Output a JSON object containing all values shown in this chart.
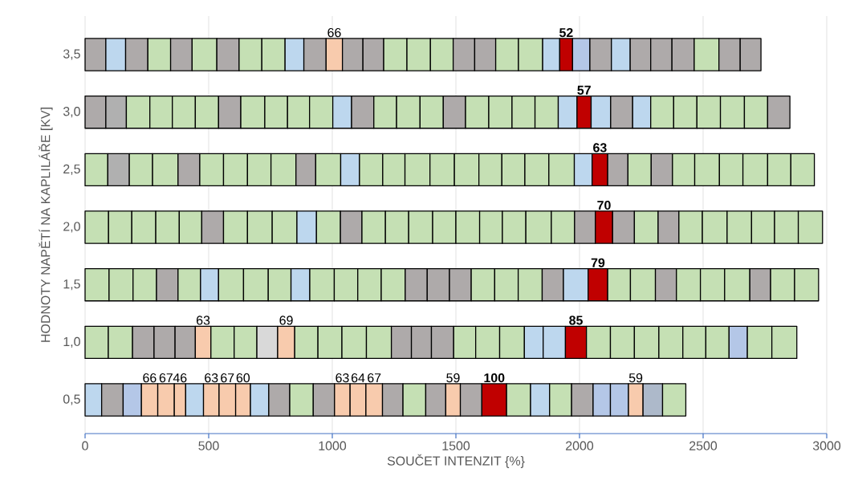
{
  "chart_data": {
    "type": "bar",
    "orientation": "horizontal",
    "stacked": true,
    "xlabel": "SOUČET INTENZIT {%}",
    "ylabel": "HODNOTY NAPĚTÍ NA KAPLILÁŘE [KV]",
    "categories": [
      "3,5",
      "3,0",
      "2,5",
      "2,0",
      "1,5",
      "1,0",
      "0,5"
    ],
    "xlim": [
      0,
      3000
    ],
    "xticks": [
      0,
      500,
      1000,
      1500,
      2000,
      2500,
      3000
    ],
    "grid": "x",
    "series": [
      {
        "values": [
          84,
          84,
          92,
          95,
          97,
          94,
          67
        ],
        "colors": [
          "#aeaaaa",
          "#aeaaaa",
          "#c5e0b4",
          "#c5e0b4",
          "#c5e0b4",
          "#c5e0b4",
          "#bdd7ee"
        ]
      },
      {
        "values": [
          80,
          83,
          87,
          94,
          97,
          98,
          87
        ],
        "colors": [
          "#bdd7ee",
          "#b0b0b0",
          "#b0b0b0",
          "#c5e0b4",
          "#c5e0b4",
          "#c5e0b4",
          "#aeaaaa"
        ]
      },
      {
        "values": [
          90,
          95,
          94,
          97,
          95,
          87,
          74
        ],
        "colors": [
          "#aeaaaa",
          "#c5e0b4",
          "#c5e0b4",
          "#c5e0b4",
          "#c5e0b4",
          "#aeaaaa",
          "#b4c7e7"
        ]
      },
      {
        "values": [
          92,
          91,
          103,
          95,
          87,
          85,
          66
        ],
        "colors": [
          "#c5e0b4",
          "#c5e0b4",
          "#c5e0b4",
          "#c5e0b4",
          "#aeaaaa",
          "#aeaaaa",
          "#f8cbad"
        ],
        "value_labels": [
          null,
          null,
          null,
          null,
          null,
          null,
          "66"
        ]
      },
      {
        "values": [
          87,
          93,
          88,
          91,
          91,
          82,
          67
        ],
        "colors": [
          "#aeaaaa",
          "#c5e0b4",
          "#aeaaaa",
          "#c5e0b4",
          "#c5e0b4",
          "#aeaaaa",
          "#f8cbad"
        ],
        "value_labels": [
          null,
          null,
          null,
          null,
          null,
          null,
          "67"
        ]
      },
      {
        "values": [
          100,
          94,
          96,
          88,
          73,
          63,
          46
        ],
        "colors": [
          "#c5e0b4",
          "#c5e0b4",
          "#c5e0b4",
          "#aeaaaa",
          "#bdd7ee",
          "#f8cbad",
          "#f8cbad"
        ],
        "value_labels": [
          null,
          null,
          null,
          null,
          null,
          "63",
          "46"
        ]
      },
      {
        "values": [
          90,
          90,
          97,
          97,
          101,
          94,
          72
        ],
        "colors": [
          "#aeaaaa",
          "#aeaaaa",
          "#c5e0b4",
          "#c5e0b4",
          "#c5e0b4",
          "#c5e0b4",
          "#bdd7ee"
        ]
      },
      {
        "values": [
          92,
          97,
          95,
          100,
          100,
          92,
          63
        ],
        "colors": [
          "#c5e0b4",
          "#c5e0b4",
          "#c5e0b4",
          "#c5e0b4",
          "#c5e0b4",
          "#c5e0b4",
          "#f8cbad"
        ],
        "value_labels": [
          null,
          null,
          null,
          null,
          null,
          null,
          "63"
        ]
      },
      {
        "values": [
          94,
          92,
          101,
          100,
          92,
          84,
          67
        ],
        "colors": [
          "#c5e0b4",
          "#c5e0b4",
          "#c5e0b4",
          "#c5e0b4",
          "#c5e0b4",
          "#d9d9d9",
          "#f8cbad"
        ],
        "value_labels": [
          null,
          null,
          null,
          null,
          null,
          null,
          "67"
        ]
      },
      {
        "values": [
          76,
          89,
          80,
          79,
          76,
          69,
          60
        ],
        "colors": [
          "#bdd7ee",
          "#c5e0b4",
          "#aeaaaa",
          "#bdd7ee",
          "#bdd7ee",
          "#f8cbad",
          "#f8cbad"
        ],
        "value_labels": [
          null,
          null,
          null,
          null,
          null,
          "69",
          "60"
        ]
      },
      {
        "values": [
          90,
          94,
          101,
          97,
          99,
          94,
          74
        ],
        "colors": [
          "#aeaaaa",
          "#c5e0b4",
          "#c5e0b4",
          "#c5e0b4",
          "#c5e0b4",
          "#c5e0b4",
          "#bdd7ee"
        ]
      },
      {
        "values": [
          66,
          76,
          76,
          87,
          95,
          97,
          85
        ],
        "colors": [
          "#f8cbad",
          "#bdd7ee",
          "#bdd7ee",
          "#aeaaaa",
          "#c5e0b4",
          "#c5e0b4",
          "#aeaaaa"
        ],
        "value_labels": [
          "66",
          null,
          null,
          null,
          null,
          null,
          null
        ]
      },
      {
        "values": [
          83,
          90,
          94,
          95,
          95,
          99,
          95
        ],
        "colors": [
          "#aeaaaa",
          "#aeaaaa",
          "#c5e0b4",
          "#c5e0b4",
          "#c5e0b4",
          "#c5e0b4",
          "#c5e0b4"
        ]
      },
      {
        "values": [
          84,
          92,
          90,
          94,
          97,
          101,
          86
        ],
        "colors": [
          "#aeaaaa",
          "#c5e0b4",
          "#c5e0b4",
          "#c5e0b4",
          "#c5e0b4",
          "#c5e0b4",
          "#aeaaaa"
        ]
      },
      {
        "values": [
          94,
          95,
          101,
          97,
          89,
          81,
          63
        ],
        "colors": [
          "#c5e0b4",
          "#c5e0b4",
          "#c5e0b4",
          "#c5e0b4",
          "#aeaaaa",
          "#aeaaaa",
          "#f8cbad"
        ],
        "value_labels": [
          null,
          null,
          null,
          null,
          null,
          null,
          "63"
        ]
      },
      {
        "values": [
          95,
          94,
          99,
          94,
          90,
          81,
          64
        ],
        "colors": [
          "#c5e0b4",
          "#c5e0b4",
          "#c5e0b4",
          "#c5e0b4",
          "#aeaaaa",
          "#aeaaaa",
          "#f8cbad"
        ],
        "value_labels": [
          null,
          null,
          null,
          null,
          null,
          null,
          "64"
        ]
      },
      {
        "values": [
          92,
          90,
          99,
          96,
          88,
          90,
          67
        ],
        "colors": [
          "#c5e0b4",
          "#aeaaaa",
          "#c5e0b4",
          "#c5e0b4",
          "#aeaaaa",
          "#aeaaaa",
          "#f8cbad"
        ],
        "value_labels": [
          null,
          null,
          null,
          null,
          null,
          null,
          "67"
        ]
      },
      {
        "values": [
          87,
          94,
          93,
          92,
          95,
          89,
          83
        ],
        "colors": [
          "#aeaaaa",
          "#c5e0b4",
          "#c5e0b4",
          "#c5e0b4",
          "#c5e0b4",
          "#c5e0b4",
          "#aeaaaa"
        ]
      },
      {
        "values": [
          85,
          94,
          93,
          95,
          95,
          97,
          92
        ],
        "colors": [
          "#aeaaaa",
          "#c5e0b4",
          "#c5e0b4",
          "#c5e0b4",
          "#c5e0b4",
          "#c5e0b4",
          "#c5e0b4"
        ]
      },
      {
        "values": [
          92,
          93,
          97,
          103,
          97,
          100,
          81
        ],
        "colors": [
          "#c5e0b4",
          "#c5e0b4",
          "#c5e0b4",
          "#c5e0b4",
          "#c5e0b4",
          "#c5e0b4",
          "#aeaaaa"
        ]
      },
      {
        "values": [
          98,
          94,
          103,
          94,
          86,
          76,
          59
        ],
        "colors": [
          "#c5e0b4",
          "#c5e0b4",
          "#c5e0b4",
          "#c5e0b4",
          "#aeaaaa",
          "#bdd7ee",
          "#f8cbad"
        ],
        "value_labels": [
          null,
          null,
          null,
          null,
          null,
          null,
          "59"
        ]
      },
      {
        "values": [
          69,
          76,
          72,
          84,
          100,
          90,
          87
        ],
        "colors": [
          "#bdd7ee",
          "#bdd7ee",
          "#bdd7ee",
          "#aeaaaa",
          "#bdd7ee",
          "#bdd7ee",
          "#aeaaaa"
        ]
      },
      {
        "values": [
          52,
          57,
          63,
          70,
          79,
          85,
          100
        ],
        "colors": [
          "#c00000",
          "#c00000",
          "#c00000",
          "#c00000",
          "#c00000",
          "#c00000",
          "#c00000"
        ],
        "value_labels": [
          "**52**",
          "**57**",
          "**63**",
          "**70**",
          "**79**",
          "**85**",
          "**100**"
        ]
      },
      {
        "values": [
          70,
          79,
          82,
          88,
          92,
          97,
          97
        ],
        "colors": [
          "#b4c7e7",
          "#bdd7ee",
          "#aeaaaa",
          "#aeaaaa",
          "#c5e0b4",
          "#c5e0b4",
          "#c5e0b4"
        ]
      },
      {
        "values": [
          87,
          89,
          94,
          96,
          101,
          97,
          77
        ],
        "colors": [
          "#aeaaaa",
          "#aeaaaa",
          "#c5e0b4",
          "#c5e0b4",
          "#c5e0b4",
          "#c5e0b4",
          "#bdd7ee"
        ]
      },
      {
        "values": [
          76,
          73,
          86,
          84,
          85,
          99,
          89
        ],
        "colors": [
          "#bdd7ee",
          "#bdd7ee",
          "#aeaaaa",
          "#aeaaaa",
          "#aeaaaa",
          "#c5e0b4",
          "#c5e0b4"
        ]
      },
      {
        "values": [
          83,
          93,
          90,
          95,
          97,
          97,
          87
        ],
        "colors": [
          "#aeaaaa",
          "#c5e0b4",
          "#c5e0b4",
          "#c5e0b4",
          "#c5e0b4",
          "#c5e0b4",
          "#aeaaaa"
        ]
      },
      {
        "values": [
          86,
          94,
          100,
          100,
          98,
          93,
          70
        ],
        "colors": [
          "#aeaaaa",
          "#c5e0b4",
          "#c5e0b4",
          "#c5e0b4",
          "#c5e0b4",
          "#c5e0b4",
          "#b4c7e7"
        ]
      },
      {
        "values": [
          90,
          95,
          95,
          99,
          102,
          94,
          73
        ],
        "colors": [
          "#aeaaaa",
          "#c5e0b4",
          "#c5e0b4",
          "#c5e0b4",
          "#c5e0b4",
          "#c5e0b4",
          "#b4c7e7"
        ]
      },
      {
        "values": [
          100,
          97,
          100,
          93,
          84,
          74,
          59
        ],
        "colors": [
          "#c5e0b4",
          "#c5e0b4",
          "#c5e0b4",
          "#c5e0b4",
          "#aeaaaa",
          "#b4c7e7",
          "#f8cbad"
        ],
        "value_labels": [
          null,
          null,
          null,
          null,
          null,
          null,
          "59"
        ]
      },
      {
        "values": [
          86,
          94,
          94,
          96,
          97,
          99,
          79
        ],
        "colors": [
          "#aeaaaa",
          "#c5e0b4",
          "#c5e0b4",
          "#c5e0b4",
          "#c5e0b4",
          "#c5e0b4",
          "#adb9ca"
        ]
      },
      {
        "values": [
          84,
          90,
          95,
          98,
          97,
          101,
          94
        ],
        "colors": [
          "#aeaaaa",
          "#aeaaaa",
          "#c5e0b4",
          "#c5e0b4",
          "#c5e0b4",
          "#c5e0b4",
          "#c5e0b4"
        ]
      }
    ]
  }
}
